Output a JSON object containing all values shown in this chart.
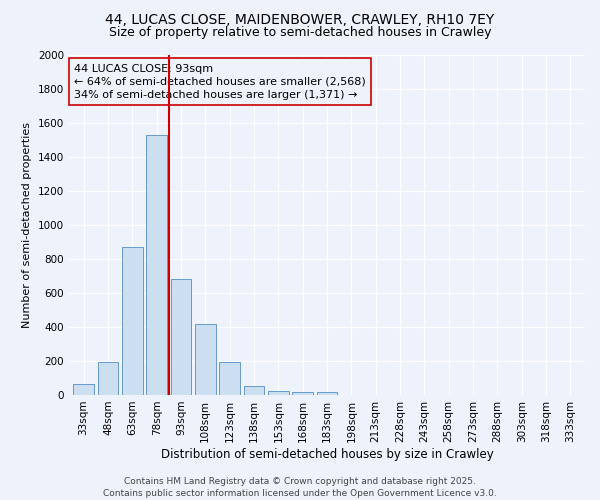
{
  "title": "44, LUCAS CLOSE, MAIDENBOWER, CRAWLEY, RH10 7EY",
  "subtitle": "Size of property relative to semi-detached houses in Crawley",
  "xlabel": "Distribution of semi-detached houses by size in Crawley",
  "ylabel": "Number of semi-detached properties",
  "bar_color": "#ccdff0",
  "bar_edge_color": "#6699cc",
  "categories": [
    "33sqm",
    "48sqm",
    "63sqm",
    "78sqm",
    "93sqm",
    "108sqm",
    "123sqm",
    "138sqm",
    "153sqm",
    "168sqm",
    "183sqm",
    "198sqm",
    "213sqm",
    "228sqm",
    "243sqm",
    "258sqm",
    "273sqm",
    "288sqm",
    "303sqm",
    "318sqm",
    "333sqm"
  ],
  "values": [
    65,
    195,
    870,
    1530,
    685,
    415,
    195,
    55,
    25,
    20,
    20,
    0,
    0,
    0,
    0,
    0,
    0,
    0,
    0,
    0,
    0
  ],
  "vline_x_index": 4,
  "vline_color": "#cc0000",
  "annotation_line1": "44 LUCAS CLOSE: 93sqm",
  "annotation_line2": "← 64% of semi-detached houses are smaller (2,568)",
  "annotation_line3": "34% of semi-detached houses are larger (1,371) →",
  "ylim": [
    0,
    2000
  ],
  "yticks": [
    0,
    200,
    400,
    600,
    800,
    1000,
    1200,
    1400,
    1600,
    1800,
    2000
  ],
  "footer_line1": "Contains HM Land Registry data © Crown copyright and database right 2025.",
  "footer_line2": "Contains public sector information licensed under the Open Government Licence v3.0.",
  "background_color": "#eef2fb",
  "title_fontsize": 10,
  "subtitle_fontsize": 9,
  "annotation_fontsize": 8,
  "ylabel_fontsize": 8,
  "xlabel_fontsize": 8.5,
  "tick_fontsize": 7.5,
  "footer_fontsize": 6.5
}
